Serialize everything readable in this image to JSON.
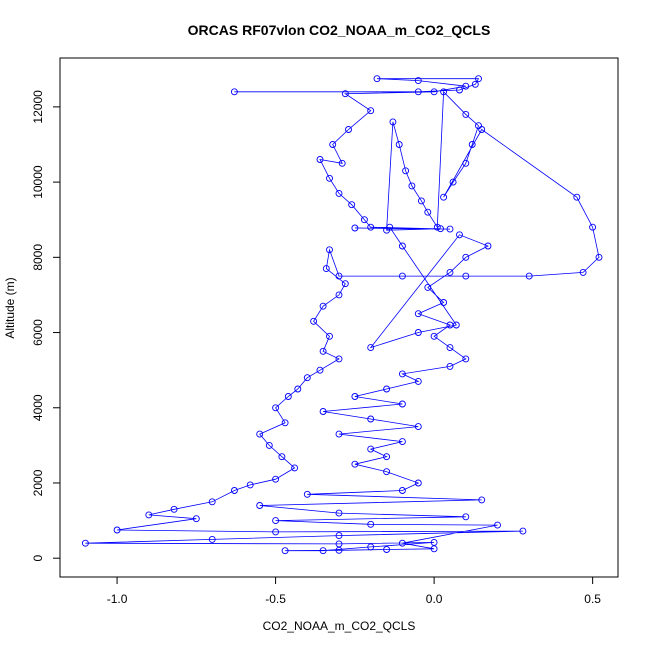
{
  "chart_data": {
    "type": "scatter",
    "title": "ORCAS RF07vlon CO2_NOAA_m_CO2_QCLS",
    "xlabel": "CO2_NOAA_m_CO2_QCLS",
    "ylabel": "Altitude (m)",
    "xlim": [
      -1.18,
      0.58
    ],
    "ylim": [
      -500,
      13300
    ],
    "xticks": [
      -1.0,
      -0.5,
      0.0,
      0.5
    ],
    "xtick_labels": [
      "-1.0",
      "-0.5",
      "0.0",
      "0.5"
    ],
    "yticks": [
      0,
      2000,
      4000,
      6000,
      8000,
      10000,
      12000
    ],
    "ytick_labels": [
      "0",
      "2000",
      "4000",
      "6000",
      "8000",
      "10000",
      "12000"
    ],
    "series": [
      {
        "name": "CO2_NOAA_m_CO2_QCLS",
        "color": "#0000ff",
        "line": true,
        "marker": "open-circle",
        "points": [
          [
            -0.63,
            12400
          ],
          [
            -0.05,
            12400
          ],
          [
            0.08,
            12450
          ],
          [
            0.13,
            12600
          ],
          [
            0.14,
            12750
          ],
          [
            -0.18,
            12750
          ],
          [
            -0.05,
            12700
          ],
          [
            0.1,
            12550
          ],
          [
            0.0,
            12400
          ],
          [
            -0.28,
            12350
          ],
          [
            -0.2,
            11900
          ],
          [
            -0.27,
            11400
          ],
          [
            -0.32,
            11000
          ],
          [
            -0.29,
            10500
          ],
          [
            -0.36,
            10600
          ],
          [
            -0.33,
            10100
          ],
          [
            -0.3,
            9700
          ],
          [
            -0.26,
            9400
          ],
          [
            -0.22,
            9000
          ],
          [
            -0.2,
            8800
          ],
          [
            0.05,
            8750
          ],
          [
            -0.25,
            8780
          ],
          [
            0.02,
            8760
          ],
          [
            -0.15,
            8720
          ],
          [
            -0.13,
            11600
          ],
          [
            -0.11,
            11000
          ],
          [
            -0.09,
            10300
          ],
          [
            -0.07,
            9900
          ],
          [
            -0.04,
            9500
          ],
          [
            -0.02,
            9200
          ],
          [
            0.01,
            8800
          ],
          [
            0.03,
            12400
          ],
          [
            0.1,
            11800
          ],
          [
            0.14,
            11500
          ],
          [
            0.12,
            11000
          ],
          [
            0.1,
            10500
          ],
          [
            0.06,
            10000
          ],
          [
            0.03,
            9600
          ],
          [
            0.15,
            11400
          ],
          [
            0.45,
            9600
          ],
          [
            0.5,
            8800
          ],
          [
            0.52,
            8000
          ],
          [
            0.47,
            7600
          ],
          [
            0.3,
            7500
          ],
          [
            0.1,
            7500
          ],
          [
            -0.1,
            7500
          ],
          [
            -0.3,
            7500
          ],
          [
            -0.33,
            8200
          ],
          [
            -0.34,
            7700
          ],
          [
            -0.28,
            7300
          ],
          [
            -0.3,
            7000
          ],
          [
            -0.35,
            6700
          ],
          [
            -0.38,
            6300
          ],
          [
            -0.33,
            5900
          ],
          [
            -0.35,
            5500
          ],
          [
            -0.3,
            5300
          ],
          [
            -0.36,
            5000
          ],
          [
            -0.4,
            4800
          ],
          [
            -0.43,
            4500
          ],
          [
            -0.46,
            4300
          ],
          [
            -0.5,
            4000
          ],
          [
            -0.47,
            3600
          ],
          [
            -0.55,
            3300
          ],
          [
            -0.52,
            3000
          ],
          [
            -0.48,
            2700
          ],
          [
            -0.44,
            2400
          ],
          [
            -0.5,
            2100
          ],
          [
            -0.58,
            1950
          ],
          [
            -0.63,
            1800
          ],
          [
            -0.7,
            1500
          ],
          [
            -0.82,
            1300
          ],
          [
            -0.9,
            1150
          ],
          [
            -0.75,
            1050
          ],
          [
            -1.0,
            750
          ],
          [
            -0.5,
            700
          ],
          [
            0.28,
            720
          ],
          [
            -0.3,
            600
          ],
          [
            -0.7,
            500
          ],
          [
            -1.1,
            400
          ],
          [
            -0.3,
            380
          ],
          [
            0.0,
            420
          ],
          [
            -0.2,
            300
          ],
          [
            -0.35,
            200
          ],
          [
            -0.47,
            200
          ],
          [
            -0.3,
            210
          ],
          [
            -0.15,
            230
          ],
          [
            0.0,
            250
          ],
          [
            -0.1,
            400
          ],
          [
            0.2,
            880
          ],
          [
            -0.2,
            900
          ],
          [
            -0.5,
            1000
          ],
          [
            0.1,
            1100
          ],
          [
            -0.3,
            1200
          ],
          [
            -0.55,
            1400
          ],
          [
            0.15,
            1550
          ],
          [
            -0.4,
            1700
          ],
          [
            -0.1,
            1800
          ],
          [
            -0.05,
            2000
          ],
          [
            -0.15,
            2300
          ],
          [
            -0.25,
            2500
          ],
          [
            -0.15,
            2700
          ],
          [
            -0.2,
            2900
          ],
          [
            -0.1,
            3100
          ],
          [
            -0.3,
            3300
          ],
          [
            -0.05,
            3500
          ],
          [
            -0.2,
            3700
          ],
          [
            -0.35,
            3900
          ],
          [
            -0.1,
            4100
          ],
          [
            -0.25,
            4300
          ],
          [
            -0.15,
            4500
          ],
          [
            -0.05,
            4700
          ],
          [
            -0.1,
            4900
          ],
          [
            0.05,
            5100
          ],
          [
            0.1,
            5300
          ],
          [
            0.05,
            5600
          ],
          [
            0.0,
            5900
          ],
          [
            0.05,
            6200
          ],
          [
            -0.05,
            6500
          ],
          [
            0.03,
            6800
          ],
          [
            -0.02,
            7200
          ],
          [
            0.05,
            7600
          ],
          [
            0.1,
            8000
          ],
          [
            0.17,
            8300
          ],
          [
            0.08,
            8600
          ],
          [
            -0.2,
            5600
          ],
          [
            -0.05,
            6000
          ],
          [
            0.07,
            6200
          ],
          [
            -0.1,
            8300
          ],
          [
            -0.14,
            8800
          ]
        ]
      }
    ]
  }
}
